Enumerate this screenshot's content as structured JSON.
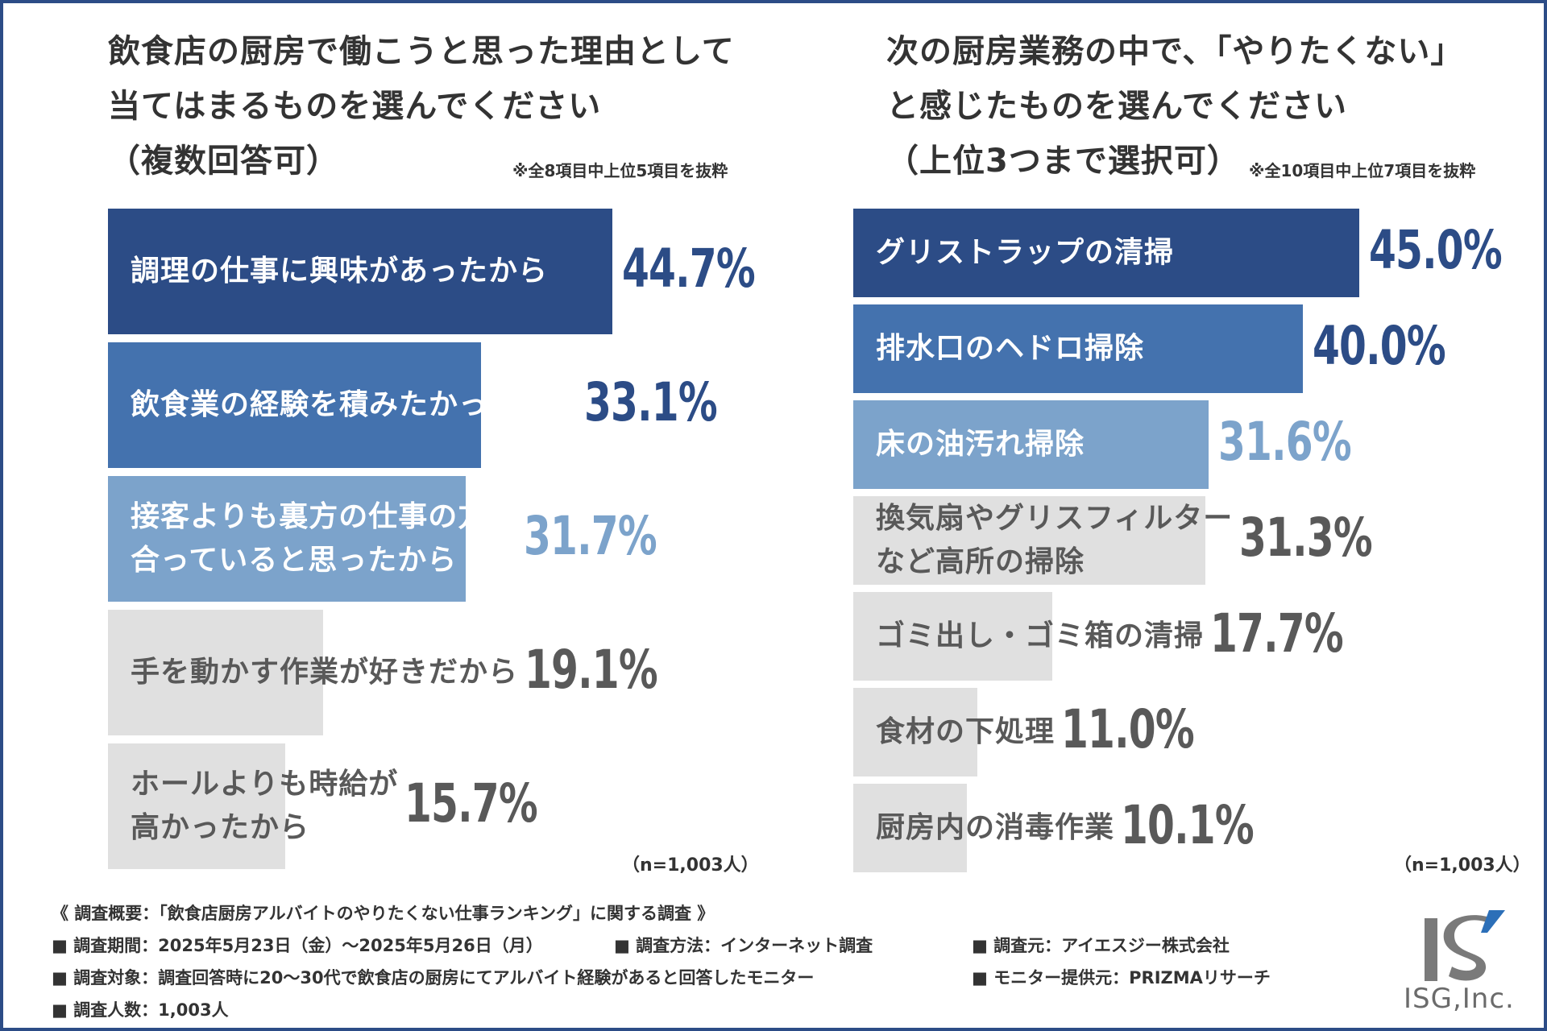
{
  "colors": {
    "dark": "#2c4c86",
    "mid": "#4472ae",
    "light": "#7ca3cb",
    "gray": "#e0e0e0",
    "grayText": "#595959",
    "white": "#ffffff"
  },
  "left": {
    "title_lines": [
      "飲食店の厨房で働こうと思った理由として",
      "当てはまるものを選んでください",
      "（複数回答可）"
    ],
    "note": "※全8項目中上位5項目を抜粋",
    "n": "（n=1,003人）"
  },
  "right": {
    "title_lines": [
      "次の厨房業務の中で、「やりたくない」",
      "と感じたものを選んでください",
      "（上位3つまで選択可）"
    ],
    "note": "※全10項目中上位7項目を抜粋",
    "n": "（n=1,003人）"
  },
  "chart_data": [
    {
      "type": "bar",
      "orientation": "horizontal",
      "title": "飲食店の厨房で働こうと思った理由として当てはまるものを選んでください（複数回答可）",
      "categories": [
        [
          "調理の仕事に興味があったから"
        ],
        [
          "飲食業の経験を積みたかったから"
        ],
        [
          "接客よりも裏方の仕事の方が",
          "合っていると思ったから"
        ],
        [
          "手を動かす作業が好きだから"
        ],
        [
          "ホールよりも時給が",
          "高かったから"
        ]
      ],
      "values": [
        44.7,
        33.1,
        31.7,
        19.1,
        15.7
      ],
      "value_labels": [
        "44.7%",
        "33.1%",
        "31.7%",
        "19.1%",
        "15.7%"
      ],
      "unit": "%",
      "xlim": [
        0,
        50
      ]
    },
    {
      "type": "bar",
      "orientation": "horizontal",
      "title": "次の厨房業務の中で、「やりたくない」と感じたものを選んでください（上位3つまで選択可）",
      "categories": [
        [
          "グリストラップの清掃"
        ],
        [
          "排水口のヘドロ掃除"
        ],
        [
          "床の油汚れ掃除"
        ],
        [
          "換気扇やグリスフィルター",
          "など高所の掃除"
        ],
        [
          "ゴミ出し・ゴミ箱の清掃"
        ],
        [
          "食材の下処理"
        ],
        [
          "厨房内の消毒作業"
        ]
      ],
      "values": [
        45.0,
        40.0,
        31.6,
        31.3,
        17.7,
        11.0,
        10.1
      ],
      "value_labels": [
        "45.0%",
        "40.0%",
        "31.6%",
        "31.3%",
        "17.7%",
        "11.0%",
        "10.1%"
      ],
      "unit": "%",
      "xlim": [
        0,
        45
      ]
    }
  ],
  "survey": {
    "heading": "《 調査概要：「飲食店厨房アルバイトのやりたくない仕事ランキング」に関する調査 》",
    "period": "■ 調査期間：2025年5月23日（金）～2025年5月26日（月）",
    "method": "■ 調査方法：インターネット調査",
    "source": "■ 調査元：アイエスジー株式会社",
    "target": "■ 調査対象：調査回答時に20～30代で飲食店の厨房にてアルバイト経験があると回答したモニター",
    "provider": "■ モニター提供元：PRIZMAリサーチ",
    "count": "■ 調査人数：1,003人"
  },
  "logo": {
    "mark": "IS",
    "text": "ISG,Inc."
  }
}
